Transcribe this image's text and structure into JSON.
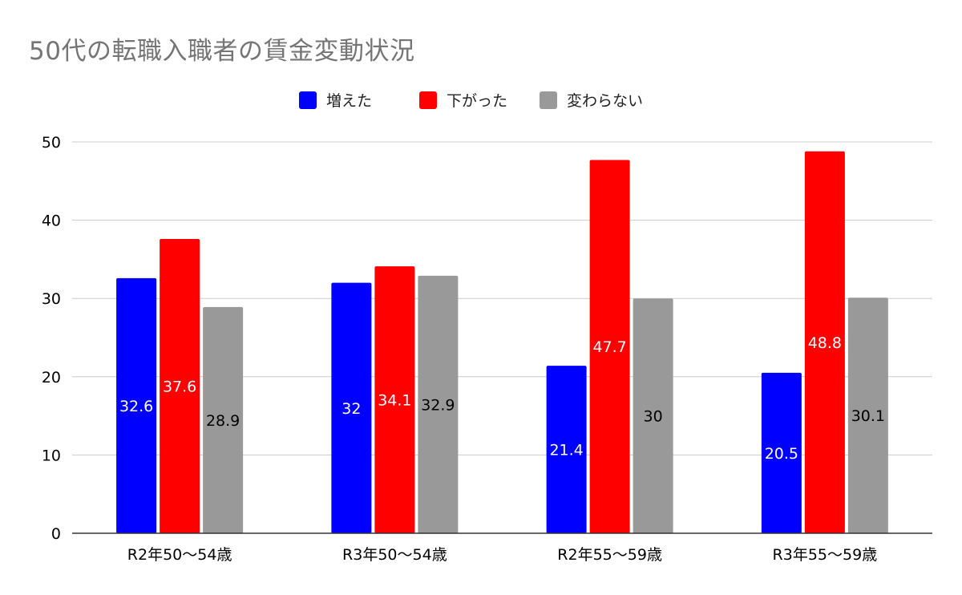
{
  "chart_data": {
    "type": "bar",
    "title": "50代の転職入職者の賃金変動状況",
    "categories": [
      "R2年50～54歳",
      "R3年50～54歳",
      "R2年55～59歳",
      "R3年55～59歳"
    ],
    "series": [
      {
        "name": "増えた",
        "color": "#0000ff",
        "label_color": "#ffffff",
        "values": [
          32.6,
          32,
          21.4,
          20.5
        ]
      },
      {
        "name": "下がった",
        "color": "#ff0000",
        "label_color": "#ffffff",
        "values": [
          37.6,
          34.1,
          47.7,
          48.8
        ]
      },
      {
        "name": "変わらない",
        "color": "#999999",
        "label_color": "#000000",
        "values": [
          28.9,
          32.9,
          30,
          30.1
        ]
      }
    ],
    "y_ticks": [
      0,
      10,
      20,
      30,
      40,
      50
    ],
    "ylim": [
      0,
      50
    ],
    "xlabel": "",
    "ylabel": "",
    "grid": true,
    "legend_position": "top-center",
    "data_labels": true
  }
}
